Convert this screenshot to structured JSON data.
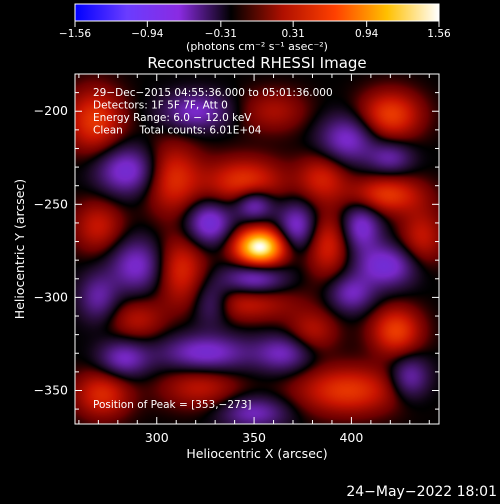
{
  "chart_data": {
    "type": "heatmap",
    "title": "Reconstructed RHESSI Image",
    "xlabel": "Heliocentric X (arcsec)",
    "ylabel": "Heliocentric Y (arcsec)",
    "xlim": [
      258,
      445
    ],
    "ylim": [
      -368,
      -180
    ],
    "x_ticks": [
      300,
      350,
      400
    ],
    "y_ticks": [
      -200,
      -250,
      -300,
      -350
    ],
    "colorbar": {
      "label": "(photons cm⁻² s⁻¹ asec⁻²)",
      "min": -1.56,
      "max": 1.56,
      "tick_values": [
        -1.56,
        -0.94,
        -0.31,
        0.31,
        0.94,
        1.56
      ],
      "tick_labels": [
        "−1.56",
        "−0.94",
        "−0.31",
        "0.31",
        "0.94",
        "1.56"
      ],
      "colors": [
        "#0000ff",
        "#6a3cff",
        "#8a2be2",
        "#000000",
        "#b01000",
        "#ff4000",
        "#ffc000",
        "#ffffff"
      ]
    },
    "info_lines": [
      "29−Dec−2015 04:55:36.000 to 05:01:36.000",
      "Detectors: 1F 5F 7F, Att 0",
      "Energy Range: 6.0 − 12.0 keV",
      "Clean     Total counts: 6.01E+04"
    ],
    "peak_label": "Position of Peak = [353,−273]",
    "peak": {
      "x": 353,
      "y": -273,
      "value": 1.56
    },
    "sources": [
      {
        "x": 353,
        "y": -273,
        "sx": 9,
        "sy": 7,
        "amp": 2.1
      },
      {
        "x": 345,
        "y": -238,
        "sx": 14,
        "sy": 9,
        "amp": 0.85
      },
      {
        "x": 308,
        "y": -236,
        "sx": 10,
        "sy": 13,
        "amp": 0.8
      },
      {
        "x": 312,
        "y": -285,
        "sx": 9,
        "sy": 12,
        "amp": 0.75
      },
      {
        "x": 345,
        "y": -303,
        "sx": 18,
        "sy": 7,
        "amp": 0.6
      },
      {
        "x": 388,
        "y": -272,
        "sx": 8,
        "sy": 12,
        "amp": 0.7
      },
      {
        "x": 385,
        "y": -236,
        "sx": 9,
        "sy": 9,
        "amp": 0.65
      },
      {
        "x": 420,
        "y": -202,
        "sx": 11,
        "sy": 9,
        "amp": 0.9
      },
      {
        "x": 418,
        "y": -245,
        "sx": 13,
        "sy": 7,
        "amp": 0.85
      },
      {
        "x": 436,
        "y": -268,
        "sx": 8,
        "sy": 11,
        "amp": 0.6
      },
      {
        "x": 423,
        "y": -318,
        "sx": 9,
        "sy": 9,
        "amp": 0.9
      },
      {
        "x": 398,
        "y": -350,
        "sx": 18,
        "sy": 9,
        "amp": 0.85
      },
      {
        "x": 268,
        "y": -205,
        "sx": 10,
        "sy": 12,
        "amp": 0.85
      },
      {
        "x": 270,
        "y": -262,
        "sx": 9,
        "sy": 10,
        "amp": 0.6
      },
      {
        "x": 272,
        "y": -352,
        "sx": 10,
        "sy": 9,
        "amp": 0.75
      },
      {
        "x": 322,
        "y": -348,
        "sx": 14,
        "sy": 8,
        "amp": 0.55
      },
      {
        "x": 290,
        "y": -312,
        "sx": 10,
        "sy": 8,
        "amp": 0.5
      },
      {
        "x": 360,
        "y": -200,
        "sx": 12,
        "sy": 8,
        "amp": 0.45
      },
      {
        "x": 380,
        "y": -318,
        "sx": 9,
        "sy": 8,
        "amp": 0.5
      },
      {
        "x": 327,
        "y": -260,
        "sx": 8,
        "sy": 8,
        "amp": -0.95
      },
      {
        "x": 350,
        "y": -250,
        "sx": 7,
        "sy": 6,
        "amp": -0.9
      },
      {
        "x": 372,
        "y": -262,
        "sx": 7,
        "sy": 9,
        "amp": -0.85
      },
      {
        "x": 350,
        "y": -290,
        "sx": 11,
        "sy": 6,
        "amp": -0.85
      },
      {
        "x": 328,
        "y": -303,
        "sx": 7,
        "sy": 8,
        "amp": -0.7
      },
      {
        "x": 285,
        "y": -232,
        "sx": 11,
        "sy": 9,
        "amp": -0.9
      },
      {
        "x": 398,
        "y": -215,
        "sx": 10,
        "sy": 9,
        "amp": -0.8
      },
      {
        "x": 420,
        "y": -225,
        "sx": 8,
        "sy": 6,
        "amp": -0.6
      },
      {
        "x": 405,
        "y": -262,
        "sx": 7,
        "sy": 9,
        "amp": -0.85
      },
      {
        "x": 418,
        "y": -283,
        "sx": 11,
        "sy": 8,
        "amp": -0.9
      },
      {
        "x": 400,
        "y": -298,
        "sx": 8,
        "sy": 7,
        "amp": -0.7
      },
      {
        "x": 290,
        "y": -283,
        "sx": 10,
        "sy": 10,
        "amp": -0.8
      },
      {
        "x": 325,
        "y": -330,
        "sx": 16,
        "sy": 7,
        "amp": -0.85
      },
      {
        "x": 365,
        "y": -330,
        "sx": 10,
        "sy": 7,
        "amp": -0.7
      },
      {
        "x": 283,
        "y": -333,
        "sx": 9,
        "sy": 7,
        "amp": -0.75
      },
      {
        "x": 350,
        "y": -362,
        "sx": 12,
        "sy": 6,
        "amp": -0.7
      },
      {
        "x": 320,
        "y": -200,
        "sx": 12,
        "sy": 7,
        "amp": -0.75
      },
      {
        "x": 430,
        "y": -343,
        "sx": 7,
        "sy": 8,
        "amp": -0.7
      },
      {
        "x": 270,
        "y": -300,
        "sx": 7,
        "sy": 9,
        "amp": -0.6
      }
    ]
  },
  "footer": {
    "timestamp": "24−May−2022 18:01"
  }
}
